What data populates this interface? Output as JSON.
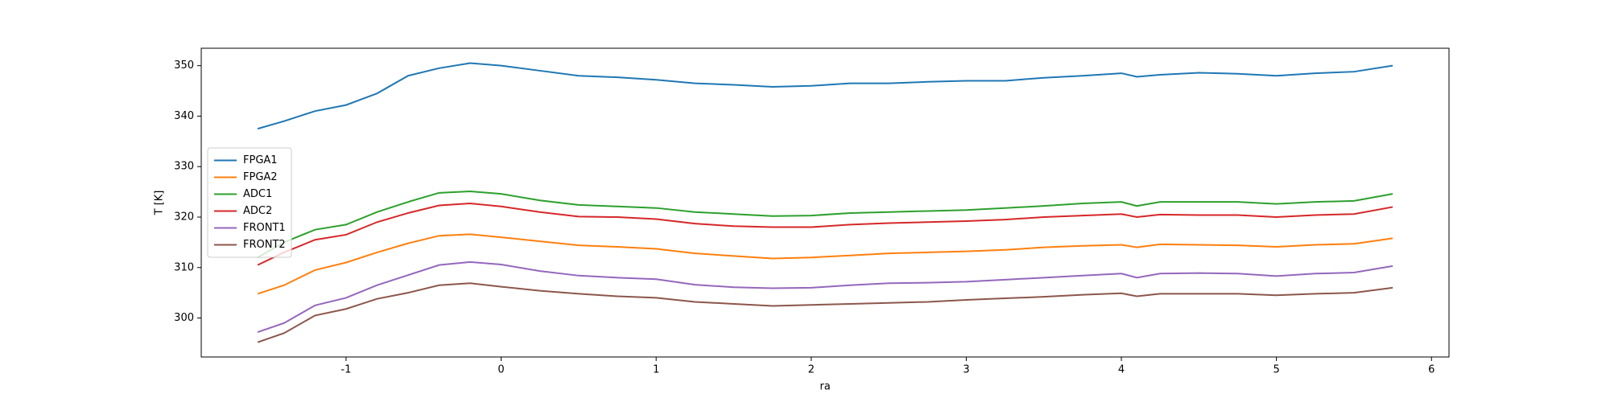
{
  "chart_data": {
    "type": "line",
    "xlabel": "ra",
    "ylabel": "T [K]",
    "x": [
      -1.57,
      -1.4,
      -1.2,
      -1.0,
      -0.8,
      -0.6,
      -0.4,
      -0.2,
      0,
      0.25,
      0.5,
      0.75,
      1.0,
      1.25,
      1.5,
      1.75,
      2.0,
      2.25,
      2.5,
      2.75,
      3.0,
      3.25,
      3.5,
      3.75,
      4.0,
      4.1,
      4.25,
      4.5,
      4.75,
      5.0,
      5.25,
      5.5,
      5.75
    ],
    "series": [
      {
        "name": "FPGA1",
        "color": "#1f77b4",
        "values": [
          337.5,
          339,
          341,
          342.2,
          344.5,
          348,
          349.5,
          350.5,
          350,
          349,
          348,
          347.7,
          347.2,
          346.5,
          346.2,
          345.8,
          346,
          346.5,
          346.5,
          346.8,
          347,
          347,
          347.6,
          348,
          348.5,
          347.8,
          348.2,
          348.6,
          348.4,
          348,
          348.5,
          348.8,
          350
        ]
      },
      {
        "name": "FPGA2",
        "color": "#ff7f0e",
        "values": [
          304.8,
          306.5,
          309.5,
          311,
          313,
          314.8,
          316.3,
          316.6,
          316,
          315.2,
          314.4,
          314.1,
          313.7,
          312.8,
          312.3,
          311.8,
          312,
          312.4,
          312.8,
          313,
          313.2,
          313.5,
          314,
          314.3,
          314.5,
          314,
          314.6,
          314.5,
          314.4,
          314.1,
          314.5,
          314.7,
          315.8
        ]
      },
      {
        "name": "ADC1",
        "color": "#2ca02c",
        "values": [
          312,
          315,
          317.5,
          318.5,
          321,
          323,
          324.8,
          325.1,
          324.6,
          323.3,
          322.4,
          322.1,
          321.8,
          321,
          320.6,
          320.2,
          320.3,
          320.8,
          321,
          321.2,
          321.4,
          321.8,
          322.2,
          322.7,
          323,
          322.2,
          323,
          323,
          323,
          322.6,
          323,
          323.2,
          324.6
        ]
      },
      {
        "name": "ADC2",
        "color": "#d62728",
        "values": [
          310.5,
          313,
          315.5,
          316.5,
          319,
          320.8,
          322.3,
          322.7,
          322.1,
          321,
          320.1,
          320,
          319.6,
          318.7,
          318.2,
          318,
          318,
          318.5,
          318.8,
          319,
          319.2,
          319.5,
          320,
          320.3,
          320.6,
          320,
          320.5,
          320.4,
          320.4,
          320,
          320.4,
          320.6,
          322
        ]
      },
      {
        "name": "FRONT1",
        "color": "#9467bd",
        "values": [
          297.2,
          299,
          302.5,
          304,
          306.5,
          308.5,
          310.5,
          311.1,
          310.6,
          309.3,
          308.4,
          308,
          307.7,
          306.6,
          306.1,
          305.9,
          306,
          306.5,
          306.9,
          307,
          307.2,
          307.6,
          308,
          308.4,
          308.8,
          308,
          308.8,
          308.9,
          308.8,
          308.3,
          308.8,
          309,
          310.3
        ]
      },
      {
        "name": "FRONT2",
        "color": "#8c564b",
        "values": [
          295.2,
          297,
          300.5,
          301.8,
          303.8,
          305,
          306.5,
          306.9,
          306.2,
          305.4,
          304.8,
          304.3,
          304,
          303.2,
          302.8,
          302.4,
          302.6,
          302.8,
          303,
          303.2,
          303.6,
          303.9,
          304.2,
          304.6,
          304.9,
          304.3,
          304.8,
          304.8,
          304.8,
          304.5,
          304.8,
          305,
          306
        ]
      }
    ],
    "xlim": [
      -1.934,
      6.113
    ],
    "xticks": [
      -1,
      0,
      1,
      2,
      3,
      4,
      5,
      6
    ],
    "ylim": [
      292.28,
      353.45
    ],
    "yticks": [
      300,
      310,
      320,
      330,
      340,
      350
    ],
    "legend": "center left"
  }
}
